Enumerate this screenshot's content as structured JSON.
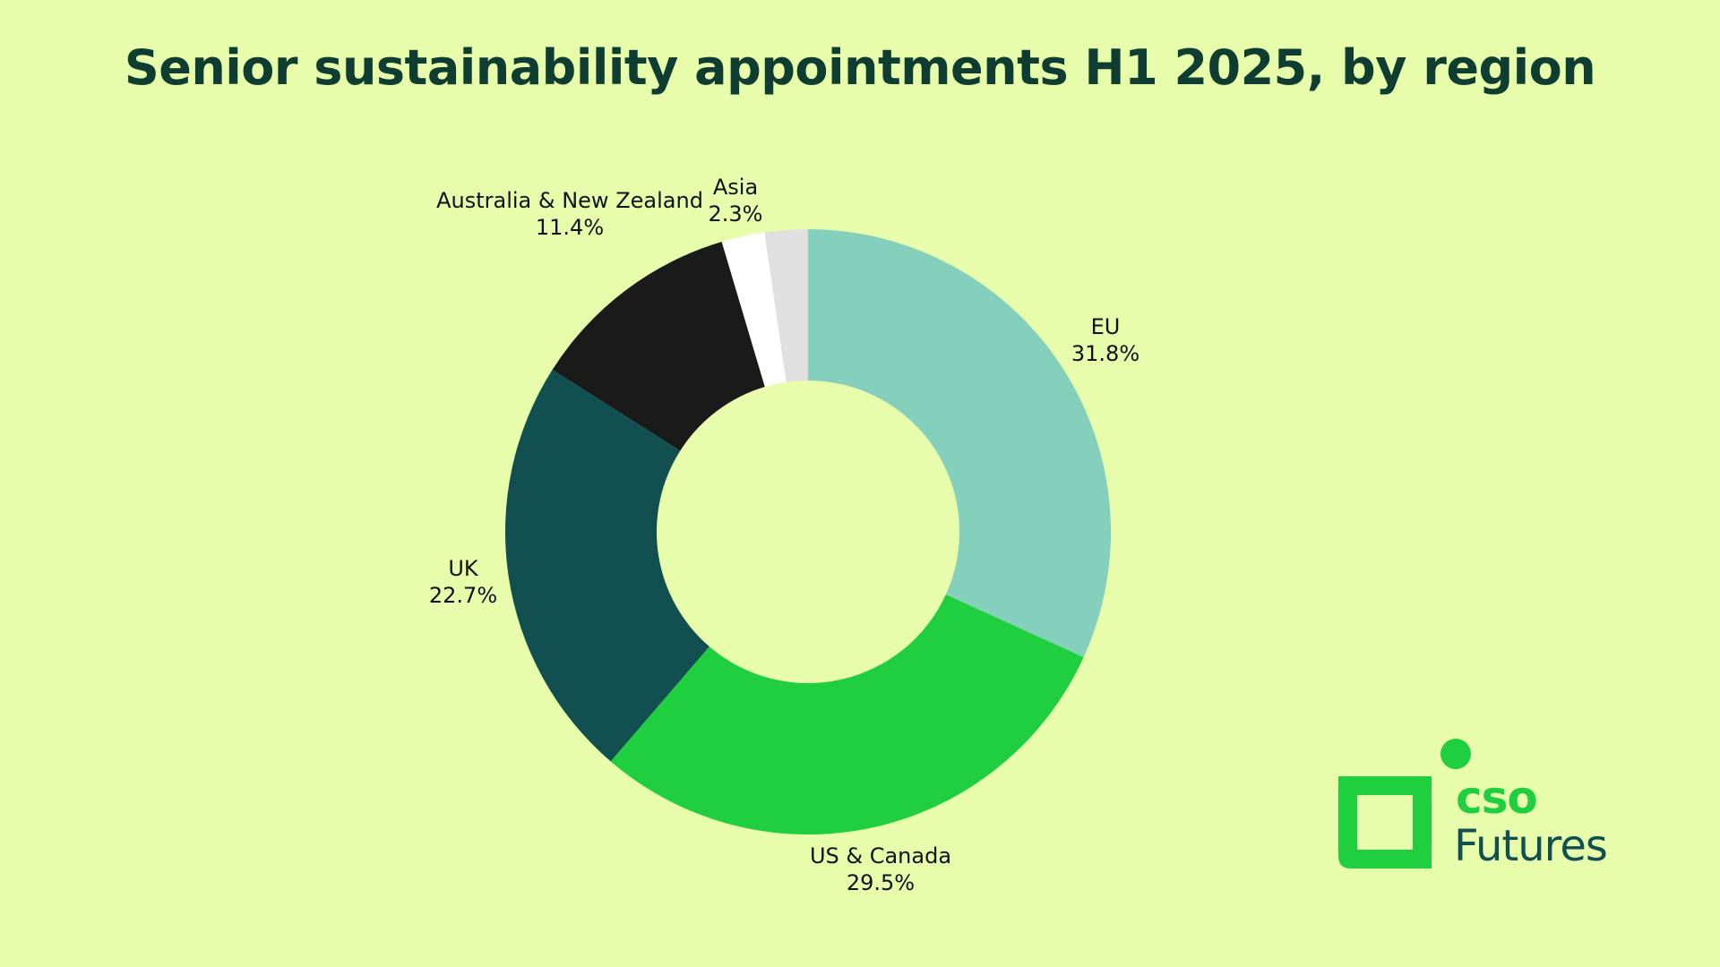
{
  "chart_data": {
    "type": "pie",
    "variant": "donut",
    "title": "Senior sustainability appointments H1 2025, by region",
    "slices": [
      {
        "label": "EU",
        "value": 31.8,
        "value_label": "31.8%",
        "color": "#85cfbd"
      },
      {
        "label": "US & Canada",
        "value": 29.5,
        "value_label": "29.5%",
        "color": "#1fcf40"
      },
      {
        "label": "UK",
        "value": 22.7,
        "value_label": "22.7%",
        "color": "#114f50"
      },
      {
        "label": "Australia & New Zealand",
        "value": 11.4,
        "value_label": "11.4%",
        "color": "#1a1a1a"
      },
      {
        "label": "Asia",
        "value": 2.3,
        "value_label": "2.3%",
        "color": "#ffffff"
      },
      {
        "label": "",
        "value": 2.3,
        "value_label": "",
        "color": "#e0e0e0"
      }
    ],
    "legend": "none"
  },
  "logo": {
    "line1": "cso",
    "line2": "Futures",
    "green": "#1fcf40",
    "dark": "#114f50"
  }
}
